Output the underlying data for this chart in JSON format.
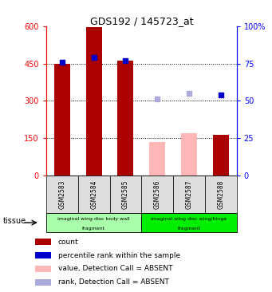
{
  "title": "GDS192 / 145723_at",
  "samples": [
    "GSM2583",
    "GSM2584",
    "GSM2585",
    "GSM2586",
    "GSM2587",
    "GSM2588"
  ],
  "count_values": [
    448,
    595,
    460,
    null,
    null,
    163
  ],
  "count_absent_values": [
    null,
    null,
    null,
    133,
    168,
    null
  ],
  "rank_values": [
    76,
    79,
    77,
    null,
    null,
    54
  ],
  "rank_absent_values": [
    null,
    null,
    null,
    51,
    55,
    null
  ],
  "ylim_left": [
    0,
    600
  ],
  "ylim_right": [
    0,
    100
  ],
  "yticks_left": [
    0,
    150,
    300,
    450,
    600
  ],
  "yticks_right": [
    0,
    25,
    50,
    75,
    100
  ],
  "ytick_labels_left": [
    "0",
    "150",
    "300",
    "450",
    "600"
  ],
  "ytick_labels_right": [
    "0",
    "25",
    "50",
    "75",
    "100%"
  ],
  "hlines": [
    150,
    300,
    450
  ],
  "tissue_group1_label_top": "imaginal wing disc body wall",
  "tissue_group1_label_bot": "fragment",
  "tissue_group2_label_top": "imaginal wing disc wing/hinge",
  "tissue_group2_label_bot": "fragment",
  "tissue_group1_color": "#AAFFAA",
  "tissue_group2_color": "#00EE00",
  "bar_color_present": "#AA0000",
  "bar_color_absent": "#FFB6B6",
  "rank_color_present": "#0000CC",
  "rank_color_absent": "#AAAADD",
  "legend_items": [
    {
      "color": "#AA0000",
      "label": "count"
    },
    {
      "color": "#0000CC",
      "label": "percentile rank within the sample"
    },
    {
      "color": "#FFB6B6",
      "label": "value, Detection Call = ABSENT"
    },
    {
      "color": "#AAAADD",
      "label": "rank, Detection Call = ABSENT"
    }
  ],
  "bg_color": "#DDDDDD",
  "tissue_label": "tissue"
}
